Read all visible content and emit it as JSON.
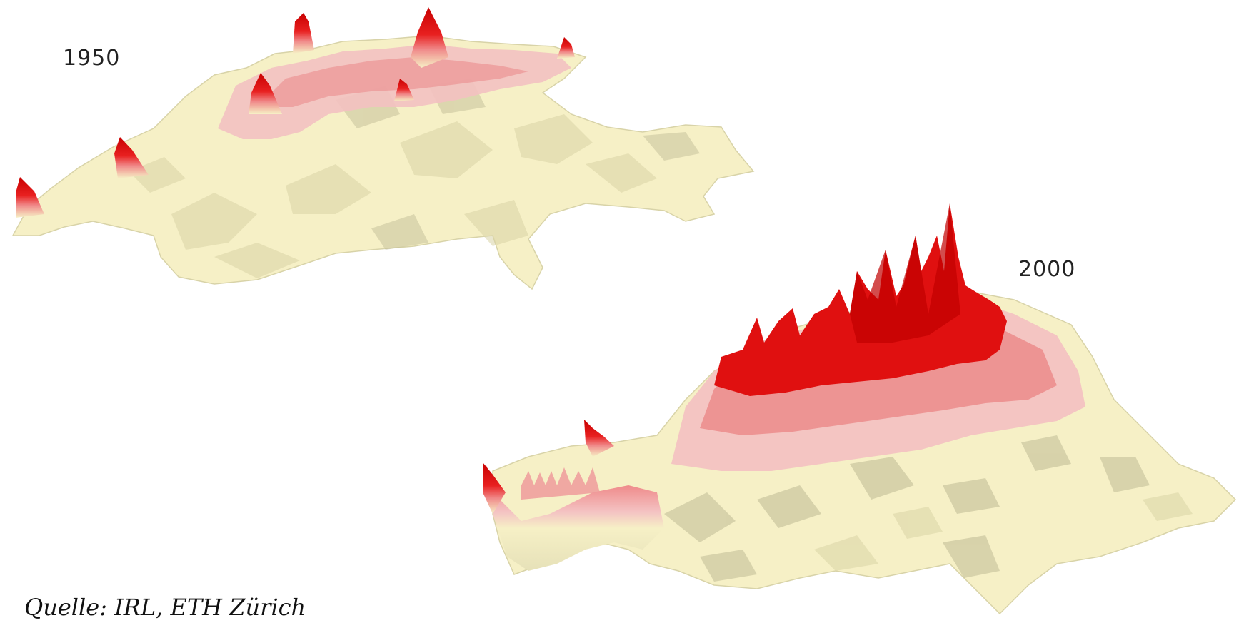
{
  "figure": {
    "label_1950": "1950",
    "label_2000": "2000",
    "source_text": "Quelle: IRL, ETH Zürich"
  },
  "colors": {
    "background": "#ffffff",
    "base": "#f6f0c6",
    "base_shadow": "#a9a68b",
    "pink_light": "#f3c1c1",
    "pink": "#e98585",
    "red": "#e01010",
    "red_dark": "#b00000"
  }
}
